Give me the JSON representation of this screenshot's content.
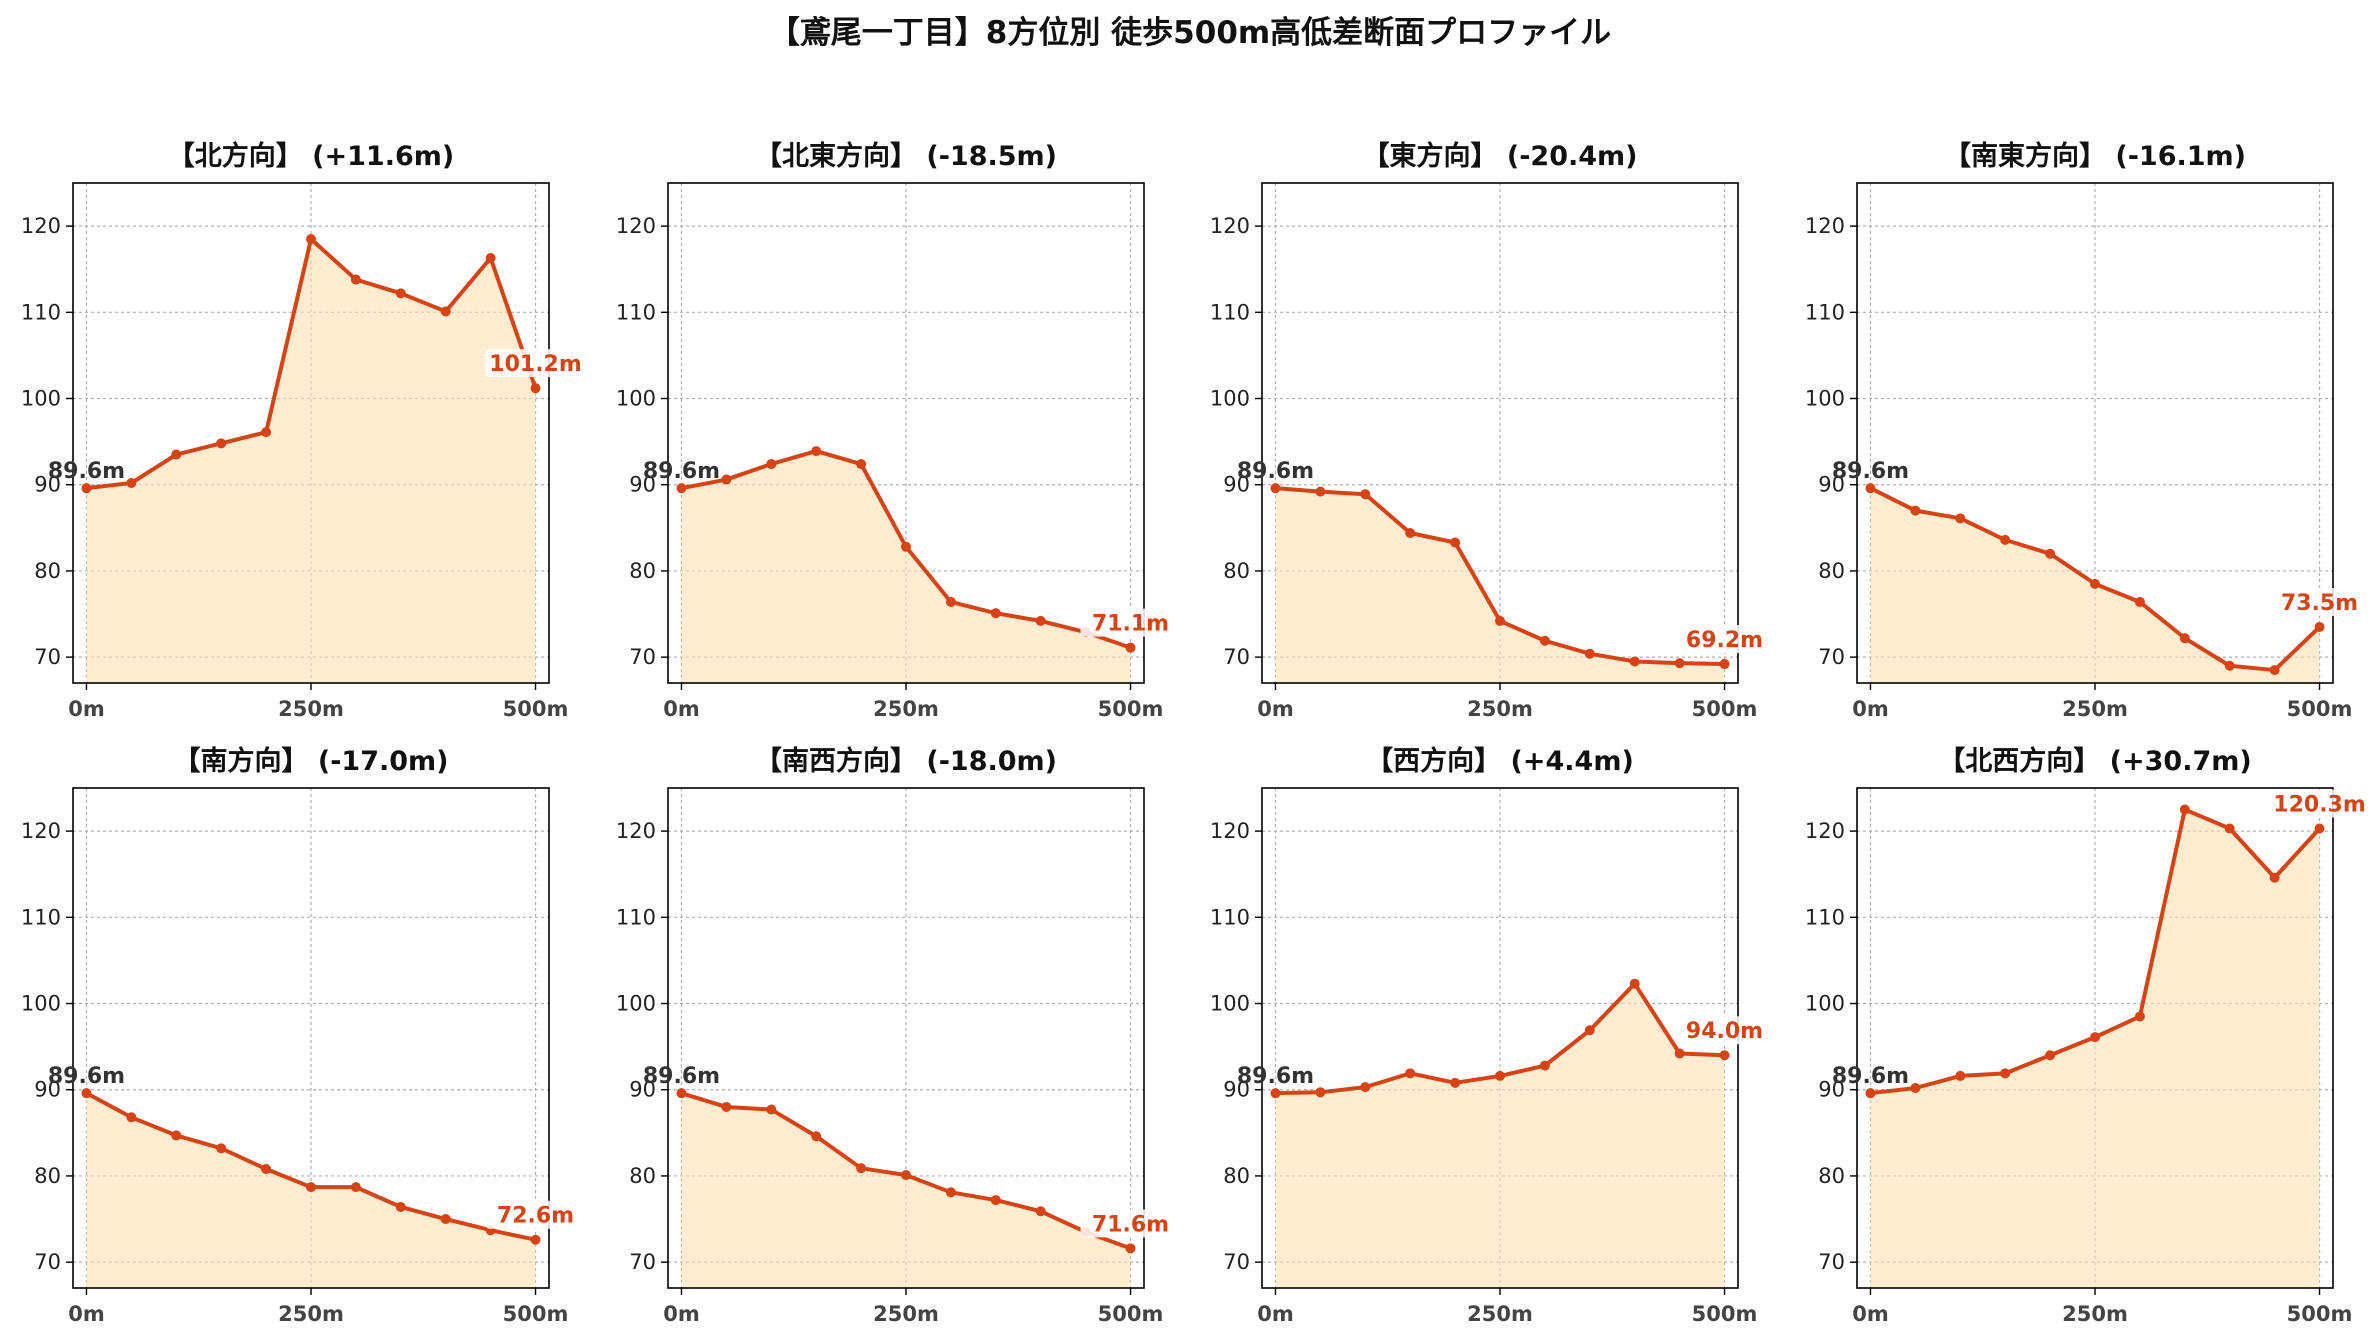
{
  "title": "【鳶尾一丁目】8方位別 徒歩500m高低差断面プロファイル",
  "colors": {
    "line": "#d84315",
    "fill": "#ffe0b2",
    "fill_opacity": 0.6,
    "start_label": "#333333",
    "end_label": "#d84315",
    "grid": "#b0b0b0",
    "axis": "#000000"
  },
  "chart_data": [
    {
      "type": "area",
      "title": "【北方向】 (+11.6m)",
      "x": [
        0,
        50,
        100,
        150,
        200,
        250,
        300,
        350,
        400,
        450,
        500
      ],
      "y": [
        89.6,
        90.2,
        93.5,
        94.8,
        96.1,
        118.5,
        113.8,
        112.2,
        110.1,
        116.3,
        101.2
      ],
      "xticks": [
        "0m",
        "250m",
        "500m"
      ],
      "yticks": [
        70,
        80,
        90,
        100,
        110,
        120
      ],
      "xlim": [
        -15,
        515
      ],
      "ylim": [
        67,
        125
      ],
      "start_label": "89.6m",
      "end_label": "101.2m",
      "grid": true
    },
    {
      "type": "area",
      "title": "【北東方向】 (-18.5m)",
      "x": [
        0,
        50,
        100,
        150,
        200,
        250,
        300,
        350,
        400,
        450,
        500
      ],
      "y": [
        89.6,
        90.6,
        92.4,
        93.9,
        92.4,
        82.8,
        76.4,
        75.1,
        74.2,
        72.9,
        71.1
      ],
      "xticks": [
        "0m",
        "250m",
        "500m"
      ],
      "yticks": [
        70,
        80,
        90,
        100,
        110,
        120
      ],
      "xlim": [
        -15,
        515
      ],
      "ylim": [
        67,
        125
      ],
      "start_label": "89.6m",
      "end_label": "71.1m",
      "grid": true
    },
    {
      "type": "area",
      "title": "【東方向】 (-20.4m)",
      "x": [
        0,
        50,
        100,
        150,
        200,
        250,
        300,
        350,
        400,
        450,
        500
      ],
      "y": [
        89.6,
        89.2,
        88.9,
        84.4,
        83.3,
        74.2,
        71.9,
        70.4,
        69.5,
        69.3,
        69.2
      ],
      "xticks": [
        "0m",
        "250m",
        "500m"
      ],
      "yticks": [
        70,
        80,
        90,
        100,
        110,
        120
      ],
      "xlim": [
        -15,
        515
      ],
      "ylim": [
        67,
        125
      ],
      "start_label": "89.6m",
      "end_label": "69.2m",
      "grid": true
    },
    {
      "type": "area",
      "title": "【南東方向】 (-16.1m)",
      "x": [
        0,
        50,
        100,
        150,
        200,
        250,
        300,
        350,
        400,
        450,
        500
      ],
      "y": [
        89.6,
        87.0,
        86.1,
        83.6,
        82.0,
        78.5,
        76.4,
        72.2,
        69.0,
        68.5,
        73.5
      ],
      "xticks": [
        "0m",
        "250m",
        "500m"
      ],
      "yticks": [
        70,
        80,
        90,
        100,
        110,
        120
      ],
      "xlim": [
        -15,
        515
      ],
      "ylim": [
        67,
        125
      ],
      "start_label": "89.6m",
      "end_label": "73.5m",
      "grid": true
    },
    {
      "type": "area",
      "title": "【南方向】 (-17.0m)",
      "x": [
        0,
        50,
        100,
        150,
        200,
        250,
        300,
        350,
        400,
        450,
        500
      ],
      "y": [
        89.6,
        86.8,
        84.7,
        83.2,
        80.8,
        78.7,
        78.7,
        76.4,
        75.0,
        73.7,
        72.6
      ],
      "xticks": [
        "0m",
        "250m",
        "500m"
      ],
      "yticks": [
        70,
        80,
        90,
        100,
        110,
        120
      ],
      "xlim": [
        -15,
        515
      ],
      "ylim": [
        67,
        125
      ],
      "start_label": "89.6m",
      "end_label": "72.6m",
      "grid": true
    },
    {
      "type": "area",
      "title": "【南西方向】 (-18.0m)",
      "x": [
        0,
        50,
        100,
        150,
        200,
        250,
        300,
        350,
        400,
        450,
        500
      ],
      "y": [
        89.6,
        88.0,
        87.7,
        84.6,
        80.9,
        80.1,
        78.1,
        77.2,
        75.9,
        73.5,
        71.6
      ],
      "xticks": [
        "0m",
        "250m",
        "500m"
      ],
      "yticks": [
        70,
        80,
        90,
        100,
        110,
        120
      ],
      "xlim": [
        -15,
        515
      ],
      "ylim": [
        67,
        125
      ],
      "start_label": "89.6m",
      "end_label": "71.6m",
      "grid": true
    },
    {
      "type": "area",
      "title": "【西方向】 (+4.4m)",
      "x": [
        0,
        50,
        100,
        150,
        200,
        250,
        300,
        350,
        400,
        450,
        500
      ],
      "y": [
        89.6,
        89.7,
        90.3,
        91.9,
        90.8,
        91.6,
        92.8,
        96.9,
        102.3,
        94.2,
        94.0
      ],
      "xticks": [
        "0m",
        "250m",
        "500m"
      ],
      "yticks": [
        70,
        80,
        90,
        100,
        110,
        120
      ],
      "xlim": [
        -15,
        515
      ],
      "ylim": [
        67,
        125
      ],
      "start_label": "89.6m",
      "end_label": "94.0m",
      "grid": true
    },
    {
      "type": "area",
      "title": "【北西方向】 (+30.7m)",
      "x": [
        0,
        50,
        100,
        150,
        200,
        250,
        300,
        350,
        400,
        450,
        500
      ],
      "y": [
        89.6,
        90.2,
        91.6,
        91.9,
        94.0,
        96.1,
        98.5,
        122.5,
        120.3,
        114.6,
        120.3
      ],
      "xticks": [
        "0m",
        "250m",
        "500m"
      ],
      "yticks": [
        70,
        80,
        90,
        100,
        110,
        120
      ],
      "xlim": [
        -15,
        515
      ],
      "ylim": [
        67,
        125
      ],
      "start_label": "89.6m",
      "end_label": "120.3m",
      "grid": true
    }
  ]
}
